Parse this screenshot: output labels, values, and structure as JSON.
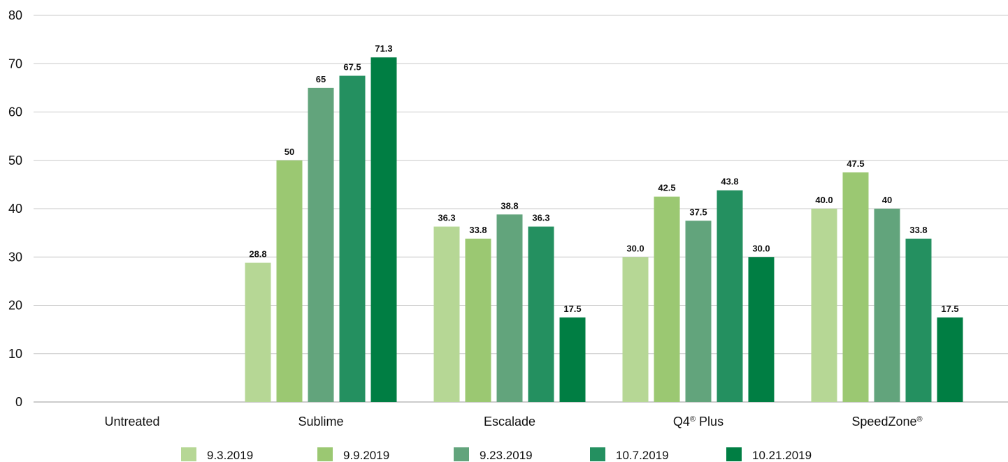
{
  "chart_data": {
    "type": "bar",
    "title": "",
    "xlabel": "",
    "ylabel": "",
    "ylim": [
      0,
      80
    ],
    "y_ticks": [
      0,
      10,
      20,
      30,
      40,
      50,
      60,
      70,
      80
    ],
    "grid": true,
    "legend_position": "bottom",
    "categories": [
      "Untreated",
      "Sublime",
      "Escalade",
      "Q4® Plus",
      "SpeedZone®"
    ],
    "series": [
      {
        "name": "9.3.2019",
        "color": "#b6d795",
        "values": [
          null,
          28.8,
          36.3,
          30.0,
          40.0
        ],
        "labels": [
          "",
          "28.8",
          "36.3",
          "30.0",
          "40.0"
        ]
      },
      {
        "name": "9.9.2019",
        "color": "#9bc872",
        "values": [
          null,
          50,
          33.8,
          42.5,
          47.5
        ],
        "labels": [
          "",
          "50",
          "33.8",
          "42.5",
          "47.5"
        ]
      },
      {
        "name": "9.23.2019",
        "color": "#62a47c",
        "values": [
          null,
          65,
          38.8,
          37.5,
          40
        ],
        "labels": [
          "",
          "65",
          "38.8",
          "37.5",
          "40"
        ]
      },
      {
        "name": "10.7.2019",
        "color": "#249060",
        "values": [
          null,
          67.5,
          36.3,
          43.8,
          33.8
        ],
        "labels": [
          "",
          "67.5",
          "36.3",
          "43.8",
          "33.8"
        ]
      },
      {
        "name": "10.21.2019",
        "color": "#007e43",
        "values": [
          null,
          71.3,
          17.5,
          30.0,
          17.5
        ],
        "labels": [
          "",
          "71.3",
          "17.5",
          "30.0",
          "17.5"
        ]
      }
    ]
  }
}
